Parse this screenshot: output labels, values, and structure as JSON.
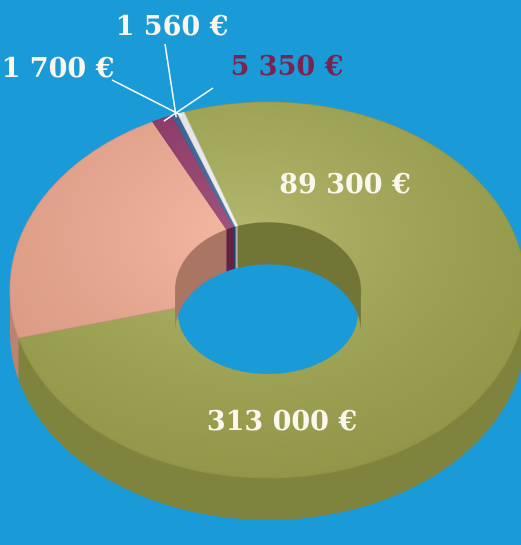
{
  "chart_data": {
    "type": "pie",
    "variant": "donut-3d",
    "categories": [
      "",
      "",
      "",
      "",
      ""
    ],
    "values": [
      313000,
      89300,
      5350,
      1560,
      1700
    ],
    "data_labels": [
      "313 000 €",
      "89 300 €",
      "5 350 €",
      "1 560 €",
      "1 700 €"
    ],
    "title": "",
    "legend": "none",
    "colors": {
      "background": "#1a9ad6",
      "slice_313000": "#a2a84e",
      "slice_89300": "#f2a88e",
      "slice_5350": "#8e2f62",
      "slice_1560": "#2b5c95",
      "slice_1700": "#f3f3f3",
      "label_dark": "#7a2350",
      "label_light": "#fbf6ee"
    }
  }
}
